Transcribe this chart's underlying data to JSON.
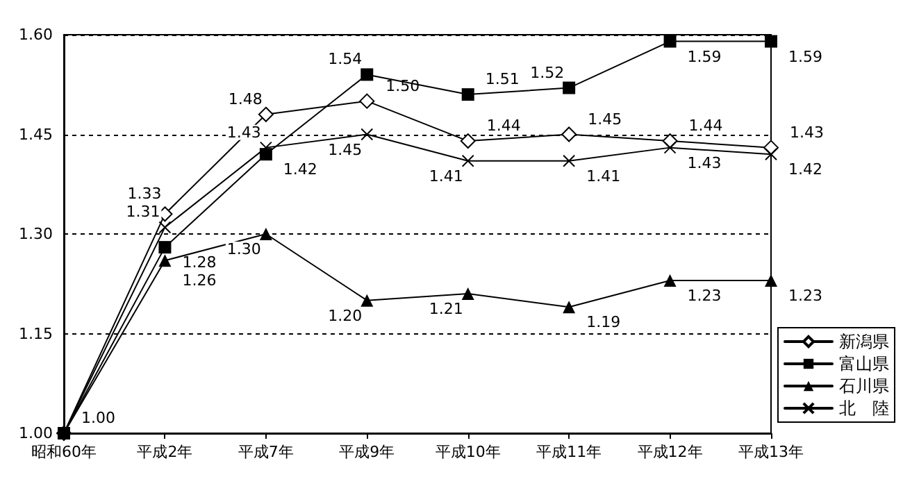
{
  "chart_data": {
    "type": "line",
    "categories": [
      "昭和60年",
      "平成2年",
      "平成7年",
      "平成9年",
      "平成10年",
      "平成11年",
      "平成12年",
      "平成13年"
    ],
    "ylim": [
      1.0,
      1.6
    ],
    "yticks": [
      {
        "value": 1.0,
        "label": "1.00"
      },
      {
        "value": 1.15,
        "label": "1.15"
      },
      {
        "value": 1.3,
        "label": "1.30"
      },
      {
        "value": 1.45,
        "label": "1.45"
      },
      {
        "value": 1.6,
        "label": "1.60"
      }
    ],
    "grid": "y",
    "legend": "right",
    "line_style": "solid",
    "series": [
      {
        "name": "新潟県",
        "color": "#000000",
        "marker": "diamond",
        "values": [
          1.0,
          1.33,
          1.48,
          1.5,
          1.44,
          1.45,
          1.44,
          1.43
        ],
        "value_labels": [
          null,
          "1.33",
          "1.48",
          "1.50",
          "1.44",
          "1.45",
          "1.44",
          "1.43"
        ]
      },
      {
        "name": "富山県",
        "color": "#000000",
        "marker": "square",
        "values": [
          1.0,
          1.28,
          1.42,
          1.54,
          1.51,
          1.52,
          1.59,
          1.59
        ],
        "value_labels": [
          "1.00",
          "1.28",
          "1.42",
          "1.54",
          "1.51",
          "1.52",
          "1.59",
          "1.59"
        ]
      },
      {
        "name": "石川県",
        "color": "#000000",
        "marker": "triangle",
        "values": [
          1.0,
          1.26,
          1.3,
          1.2,
          1.21,
          1.19,
          1.23,
          1.23
        ],
        "value_labels": [
          null,
          "1.26",
          "1.30",
          "1.20",
          "1.21",
          "1.19",
          "1.23",
          "1.23"
        ]
      },
      {
        "name": "北　陸",
        "color": "#000000",
        "marker": "cross",
        "values": [
          1.0,
          1.31,
          1.43,
          1.45,
          1.41,
          1.41,
          1.43,
          1.42
        ],
        "value_labels": [
          null,
          "1.31",
          "1.43",
          "1.45",
          "1.41",
          "1.41",
          "1.43",
          "1.42"
        ]
      }
    ]
  }
}
